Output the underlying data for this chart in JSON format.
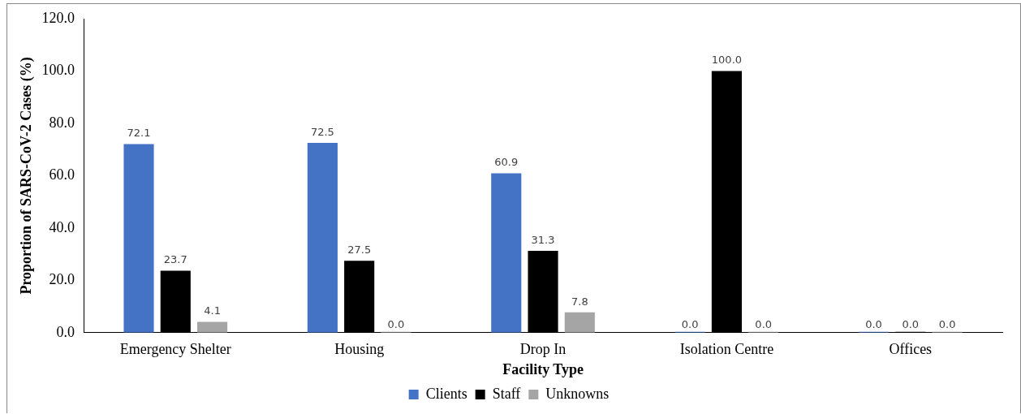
{
  "chart_data": {
    "type": "bar",
    "xlabel": "Facility Type",
    "ylabel": "Proportion of SARS-CoV-2 Cases (%)",
    "categories": [
      "Emergency Shelter",
      "Housing",
      "Drop In",
      "Isolation Centre",
      "Offices"
    ],
    "series": [
      {
        "name": "Clients",
        "color": "#4472c4",
        "values": [
          72.1,
          72.5,
          60.9,
          0,
          0
        ],
        "value_labels": [
          "72.1",
          "72.5",
          "60.9",
          "0.0",
          "0.0"
        ]
      },
      {
        "name": "Staff",
        "color": "#000000",
        "values": [
          23.7,
          27.5,
          31.3,
          100,
          0
        ],
        "value_labels": [
          "23.7",
          "27.5",
          "31.3",
          "100.0",
          "0.0"
        ]
      },
      {
        "name": "Unknowns",
        "color": "#a5a5a5",
        "values": [
          4.1,
          0,
          7.8,
          0,
          0
        ],
        "value_labels": [
          "4.1",
          "0.0",
          "7.8",
          "0.0",
          "0.0"
        ]
      }
    ],
    "ylim": [
      0,
      120
    ],
    "yticks": [
      {
        "value": 0,
        "label": "0.0"
      },
      {
        "value": 20,
        "label": "20.0"
      },
      {
        "value": 40,
        "label": "40.0"
      },
      {
        "value": 60,
        "label": "60.0"
      },
      {
        "value": 80,
        "label": "80.0"
      },
      {
        "value": 100,
        "label": "100.0"
      },
      {
        "value": 120,
        "label": "120.0"
      }
    ],
    "grid": false,
    "legend": "bottom"
  }
}
